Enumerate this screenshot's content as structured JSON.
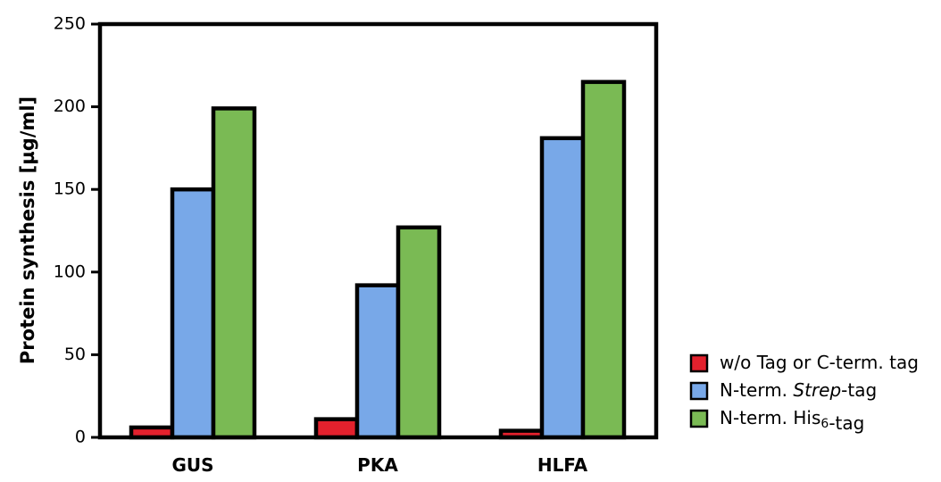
{
  "chart_data": {
    "type": "bar",
    "ylabel": "Protein synthesis [µg/ml]",
    "xlabel": "",
    "ylim": [
      0,
      250
    ],
    "yticks": [
      0,
      50,
      100,
      150,
      200,
      250
    ],
    "grid": false,
    "legend_position": "bottom-right",
    "categories": [
      "GUS",
      "PKA",
      "HLFA"
    ],
    "series": [
      {
        "name": "w/o Tag or C-term. tag",
        "name_parts": [
          {
            "text": "w/o Tag or C-term. tag",
            "style": "normal"
          }
        ],
        "color": "#e3212d",
        "values": [
          6,
          11,
          4
        ]
      },
      {
        "name": "N-term. Strep-tag",
        "name_parts": [
          {
            "text": "N-term. ",
            "style": "normal"
          },
          {
            "text": "Strep",
            "style": "italic"
          },
          {
            "text": "-tag",
            "style": "normal"
          }
        ],
        "color": "#78a8e8",
        "values": [
          150,
          92,
          181
        ]
      },
      {
        "name": "N-term. His6-tag",
        "name_parts": [
          {
            "text": "N-term. His",
            "style": "normal"
          },
          {
            "text": "6",
            "style": "sub"
          },
          {
            "text": "-tag",
            "style": "normal"
          }
        ],
        "color": "#7aba54",
        "values": [
          199,
          127,
          215
        ]
      }
    ]
  }
}
